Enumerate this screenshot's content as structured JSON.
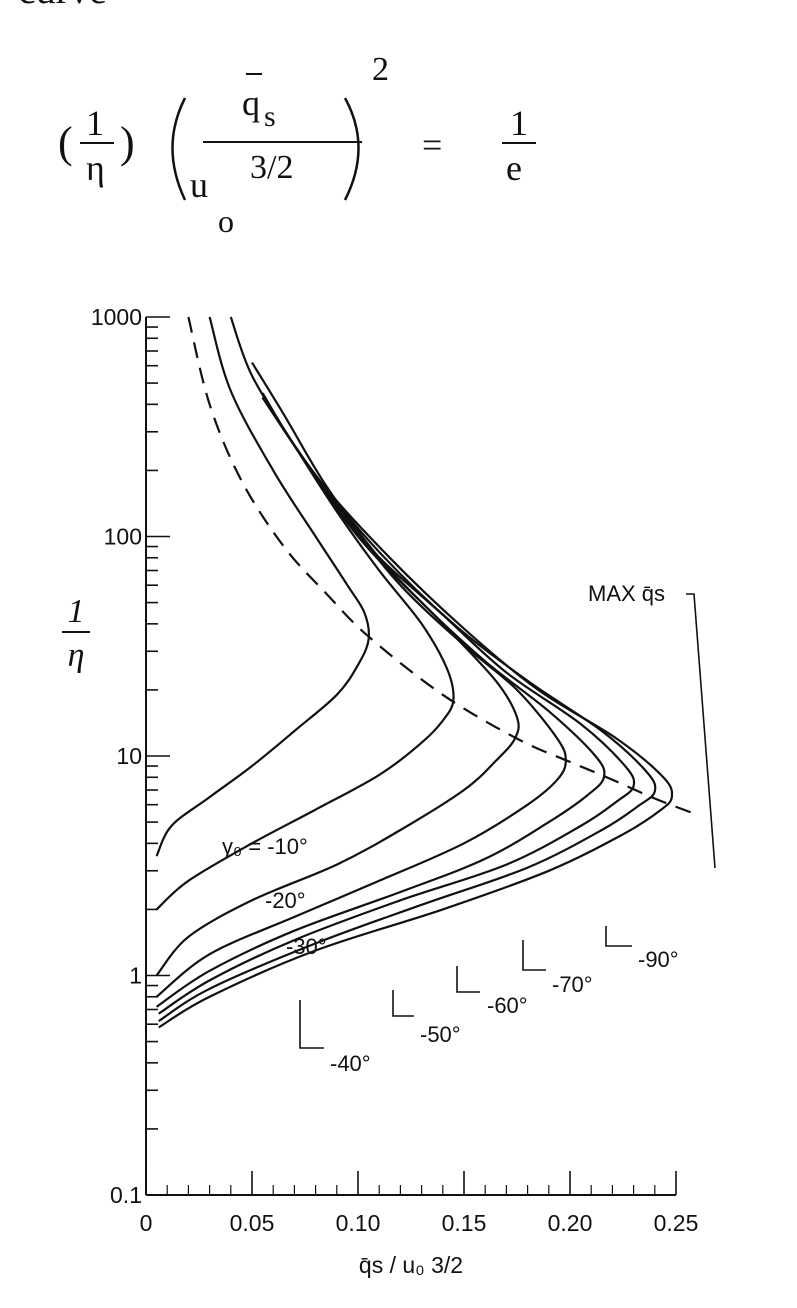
{
  "page": {
    "header_word": "curve"
  },
  "equation": {
    "lhs_paren_open": "(",
    "lhs_numerator": "1",
    "lhs_denominator": "η",
    "lhs_paren_close": ")",
    "frac_numerator": "q",
    "frac_numerator_sub": "s",
    "frac_denominator": "u",
    "frac_denominator_sub": "o",
    "frac_denominator_exp": "3/2",
    "exponent": "2",
    "equals": "=",
    "rhs_numerator": "1",
    "rhs_denominator": "e"
  },
  "chart_data": {
    "type": "line",
    "xlabel": "q̄s / u₀ 3/2",
    "ylabel_numerator": "1",
    "ylabel_denominator": "η",
    "xlim": [
      0,
      0.25
    ],
    "ylim": [
      0.1,
      1000
    ],
    "yscale": "log",
    "grid": false,
    "x_ticks": [
      "0",
      "0.05",
      "0.10",
      "0.15",
      "0.20",
      "0.25"
    ],
    "x_tick_values": [
      0,
      0.05,
      0.1,
      0.15,
      0.2,
      0.25
    ],
    "y_ticks": [
      "0.1",
      "1",
      "10",
      "100",
      "1000"
    ],
    "y_tick_values": [
      0.1,
      1,
      10,
      100,
      1000
    ],
    "series": [
      {
        "name": "γ₀ = -10°",
        "points": [
          [
            0.005,
            3.5
          ],
          [
            0.012,
            4.8
          ],
          [
            0.03,
            6.5
          ],
          [
            0.05,
            9
          ],
          [
            0.07,
            13
          ],
          [
            0.09,
            19
          ],
          [
            0.1,
            26
          ],
          [
            0.105,
            34
          ],
          [
            0.103,
            45
          ],
          [
            0.095,
            60
          ],
          [
            0.08,
            100
          ],
          [
            0.06,
            200
          ],
          [
            0.04,
            460
          ],
          [
            0.03,
            1000
          ]
        ]
      },
      {
        "name": "-20°",
        "points": [
          [
            0.005,
            2.0
          ],
          [
            0.02,
            2.7
          ],
          [
            0.05,
            4.0
          ],
          [
            0.08,
            5.7
          ],
          [
            0.11,
            8.2
          ],
          [
            0.13,
            11.5
          ],
          [
            0.14,
            14.5
          ],
          [
            0.145,
            18
          ],
          [
            0.142,
            25
          ],
          [
            0.13,
            40
          ],
          [
            0.11,
            70
          ],
          [
            0.09,
            130
          ],
          [
            0.07,
            260
          ],
          [
            0.05,
            540
          ],
          [
            0.04,
            1000
          ]
        ]
      },
      {
        "name": "-30°",
        "points": [
          [
            0.005,
            1.0
          ],
          [
            0.02,
            1.5
          ],
          [
            0.05,
            2.2
          ],
          [
            0.09,
            3.2
          ],
          [
            0.12,
            4.6
          ],
          [
            0.15,
            7.0
          ],
          [
            0.165,
            9.5
          ],
          [
            0.174,
            12
          ],
          [
            0.175,
            15
          ],
          [
            0.165,
            22
          ],
          [
            0.14,
            40
          ],
          [
            0.11,
            80
          ],
          [
            0.085,
            170
          ],
          [
            0.065,
            360
          ],
          [
            0.05,
            620
          ]
        ]
      },
      {
        "name": "-40°",
        "points": [
          [
            0.005,
            0.8
          ],
          [
            0.03,
            1.25
          ],
          [
            0.07,
            1.85
          ],
          [
            0.11,
            2.7
          ],
          [
            0.15,
            4.0
          ],
          [
            0.18,
            6.0
          ],
          [
            0.194,
            7.8
          ],
          [
            0.198,
            9.5
          ],
          [
            0.194,
            12
          ],
          [
            0.175,
            20
          ],
          [
            0.15,
            32
          ],
          [
            0.12,
            60
          ],
          [
            0.095,
            120
          ],
          [
            0.07,
            260
          ],
          [
            0.055,
            450
          ]
        ]
      },
      {
        "name": "-50°",
        "points": [
          [
            0.005,
            0.72
          ],
          [
            0.03,
            1.05
          ],
          [
            0.07,
            1.6
          ],
          [
            0.12,
            2.4
          ],
          [
            0.16,
            3.4
          ],
          [
            0.19,
            5.0
          ],
          [
            0.208,
            6.6
          ],
          [
            0.216,
            8.0
          ],
          [
            0.212,
            10
          ],
          [
            0.19,
            16
          ],
          [
            0.16,
            27
          ],
          [
            0.13,
            50
          ],
          [
            0.1,
            100
          ],
          [
            0.075,
            220
          ],
          [
            0.055,
            430
          ]
        ]
      },
      {
        "name": "-60°",
        "points": [
          [
            0.006,
            0.67
          ],
          [
            0.03,
            0.95
          ],
          [
            0.07,
            1.45
          ],
          [
            0.12,
            2.2
          ],
          [
            0.17,
            3.2
          ],
          [
            0.205,
            4.8
          ],
          [
            0.222,
            6.2
          ],
          [
            0.23,
            7.3
          ],
          [
            0.226,
            9
          ],
          [
            0.205,
            14
          ],
          [
            0.17,
            24
          ],
          [
            0.14,
            44
          ],
          [
            0.105,
            90
          ],
          [
            0.078,
            200
          ],
          [
            0.055,
            430
          ]
        ]
      },
      {
        "name": "-70°",
        "points": [
          [
            0.006,
            0.62
          ],
          [
            0.03,
            0.87
          ],
          [
            0.08,
            1.4
          ],
          [
            0.13,
            2.1
          ],
          [
            0.18,
            3.1
          ],
          [
            0.215,
            4.6
          ],
          [
            0.232,
            5.9
          ],
          [
            0.24,
            6.9
          ],
          [
            0.236,
            8.5
          ],
          [
            0.215,
            13
          ],
          [
            0.18,
            22
          ],
          [
            0.145,
            40
          ],
          [
            0.11,
            85
          ],
          [
            0.08,
            190
          ],
          [
            0.055,
            430
          ]
        ]
      },
      {
        "name": "-90°",
        "points": [
          [
            0.006,
            0.58
          ],
          [
            0.03,
            0.8
          ],
          [
            0.08,
            1.3
          ],
          [
            0.14,
            2.0
          ],
          [
            0.19,
            3.0
          ],
          [
            0.225,
            4.4
          ],
          [
            0.242,
            5.6
          ],
          [
            0.248,
            6.5
          ],
          [
            0.244,
            8.0
          ],
          [
            0.222,
            12
          ],
          [
            0.185,
            20
          ],
          [
            0.15,
            38
          ],
          [
            0.115,
            80
          ],
          [
            0.082,
            180
          ],
          [
            0.055,
            430
          ]
        ]
      }
    ],
    "dashed_curve": {
      "name": "MAX q̄s",
      "points": [
        [
          0.02,
          1000
        ],
        [
          0.03,
          400
        ],
        [
          0.045,
          180
        ],
        [
          0.065,
          90
        ],
        [
          0.085,
          55
        ],
        [
          0.105,
          35
        ],
        [
          0.14,
          19
        ],
        [
          0.175,
          12
        ],
        [
          0.2,
          9.4
        ],
        [
          0.22,
          7.8
        ],
        [
          0.24,
          6.4
        ],
        [
          0.26,
          5.4
        ]
      ]
    },
    "annotations": {
      "max_label": "MAX q̄s",
      "gamma_label": "γ₀ = -10°",
      "labels": [
        "-20°",
        "-30°",
        "-40°",
        "-50°",
        "-60°",
        "-70°",
        "-90°"
      ]
    }
  }
}
